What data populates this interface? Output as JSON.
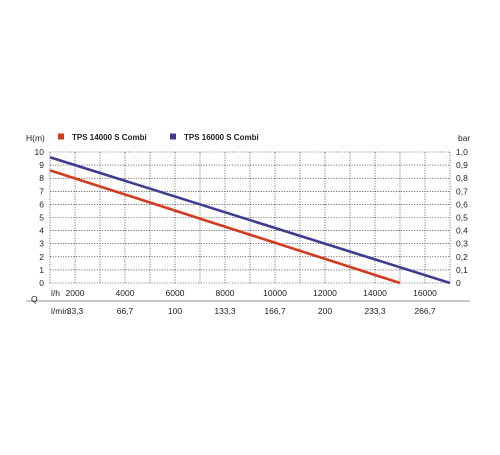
{
  "chart_data": {
    "type": "line",
    "left_axis_label": "H(m)",
    "right_axis_label": "bar",
    "y_left_ticks": [
      "0",
      "1",
      "2",
      "3",
      "4",
      "5",
      "6",
      "7",
      "8",
      "9",
      "10"
    ],
    "y_right_ticks": [
      "0",
      "0,1",
      "0,2",
      "0,3",
      "0,4",
      "0,5",
      "0,6",
      "0,7",
      "0,8",
      "0,9",
      "1,0"
    ],
    "ylim": [
      0,
      10
    ],
    "xlim": [
      0,
      16000
    ],
    "x_label_row1": "l/h",
    "x_label_row2": "l/min",
    "x_group_label": "Q",
    "x_ticks_lh": [
      "2000",
      "4000",
      "6000",
      "8000",
      "10000",
      "12000",
      "14000",
      "16000"
    ],
    "x_ticks_lmin": [
      "33,3",
      "66,7",
      "100",
      "133,3",
      "166,7",
      "200",
      "233,3",
      "266,7"
    ],
    "grid": true,
    "legend_position": "top",
    "series": [
      {
        "name": "TPS 14000 S Combi",
        "color": "#d63a1e",
        "x": [
          0,
          14000
        ],
        "y": [
          8.6,
          0
        ]
      },
      {
        "name": "TPS 16000 S Combi",
        "color": "#3d3c92",
        "x": [
          0,
          16000
        ],
        "y": [
          9.6,
          0
        ]
      }
    ]
  }
}
